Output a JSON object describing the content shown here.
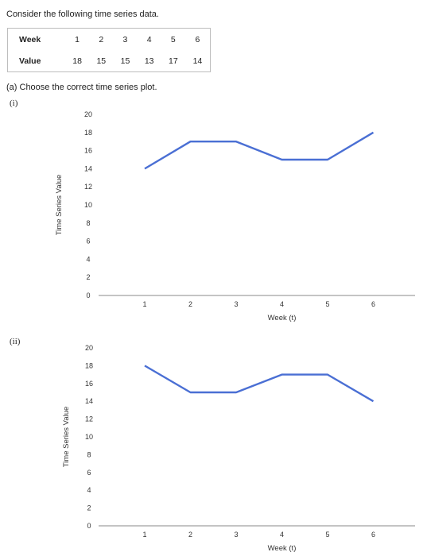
{
  "intro": "Consider the following time series data.",
  "table": {
    "week_label": "Week",
    "value_label": "Value",
    "weeks": [
      "1",
      "2",
      "3",
      "4",
      "5",
      "6"
    ],
    "values": [
      "18",
      "15",
      "15",
      "13",
      "17",
      "14"
    ]
  },
  "question": "(a) Choose the correct time series plot.",
  "colors": {
    "line": "#4a6fd4",
    "axis": "#888888"
  },
  "options": [
    {
      "label": "(i)"
    },
    {
      "label": "(ii)"
    }
  ],
  "chart_data": [
    {
      "type": "line",
      "x": [
        1,
        2,
        3,
        4,
        5,
        6
      ],
      "y": [
        14,
        17,
        17,
        15,
        15,
        18
      ],
      "xlabel": "Week (t)",
      "ylabel": "Time Series Value",
      "yticks": [
        0,
        2,
        4,
        6,
        8,
        10,
        12,
        14,
        16,
        18,
        20
      ],
      "xticks": [
        1,
        2,
        3,
        4,
        5,
        6
      ],
      "ylim": [
        0,
        20
      ],
      "grid": false
    },
    {
      "type": "line",
      "x": [
        1,
        2,
        3,
        4,
        5,
        6
      ],
      "y": [
        18,
        15,
        15,
        17,
        17,
        14
      ],
      "xlabel": "Week (t)",
      "ylabel": "Time Series Value",
      "yticks": [
        0,
        2,
        4,
        6,
        8,
        10,
        12,
        14,
        16,
        18,
        20
      ],
      "xticks": [
        1,
        2,
        3,
        4,
        5,
        6
      ],
      "ylim": [
        0,
        20
      ],
      "grid": false
    }
  ]
}
